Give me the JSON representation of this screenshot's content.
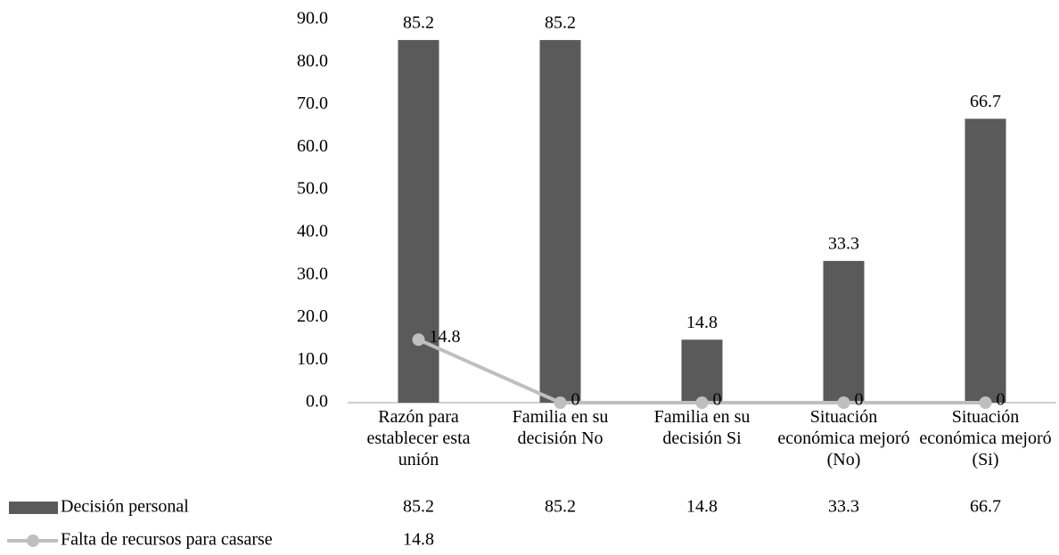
{
  "chart_data": {
    "type": "bar",
    "categories": [
      "Razón para establecer esta unión",
      "Familia en su decisión No",
      "Familia en su decisión Si",
      "Situación económica mejoró  (No)",
      "Situación económica mejoró  (Si)"
    ],
    "series": [
      {
        "name": "Decisión  personal",
        "type": "bar",
        "color": "#5a5a5a",
        "values": [
          85.2,
          85.2,
          14.8,
          33.3,
          66.7
        ]
      },
      {
        "name": "Falta de recursos para casarse",
        "type": "line",
        "color": "#bfbfbf",
        "values": [
          14.8,
          0,
          0,
          0,
          0
        ]
      }
    ],
    "ylim": [
      0,
      90
    ],
    "yticks": [
      {
        "value": 0,
        "label": "0.0"
      },
      {
        "value": 10,
        "label": "10.0"
      },
      {
        "value": 20,
        "label": "20.0"
      },
      {
        "value": 30,
        "label": "30.0"
      },
      {
        "value": 40,
        "label": "40.0"
      },
      {
        "value": 50,
        "label": "50.0"
      },
      {
        "value": 60,
        "label": "60.0"
      },
      {
        "value": 70,
        "label": "70.0"
      },
      {
        "value": 80,
        "label": "80.0"
      },
      {
        "value": 90,
        "label": "90.0"
      }
    ],
    "grid": false,
    "legend": "bottom-left"
  }
}
